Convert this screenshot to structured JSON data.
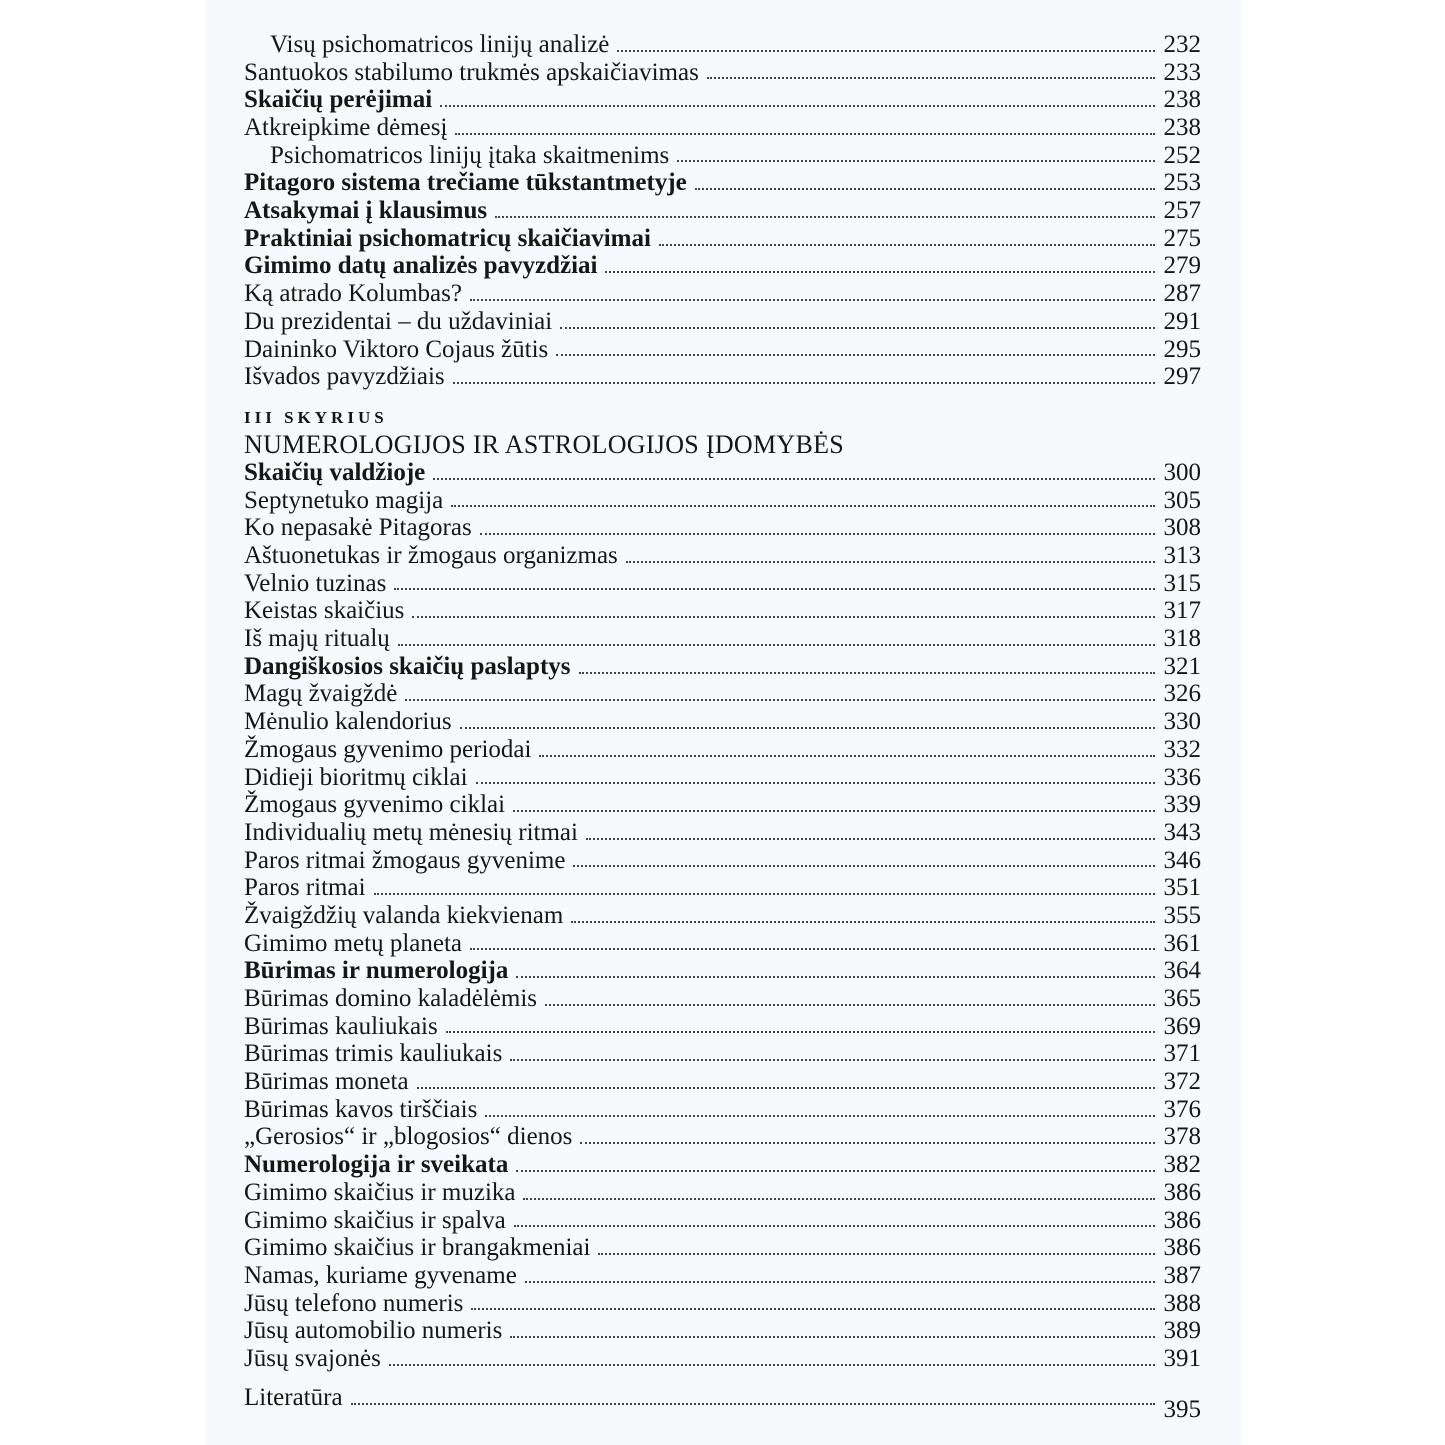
{
  "section1": [
    {
      "title": "Visų psichomatricos linijų analizė",
      "page": "232",
      "bold": false,
      "indent": true
    },
    {
      "title": "Santuokos stabilumo trukmės apskaičiavimas",
      "page": "233",
      "bold": false,
      "indent": false
    },
    {
      "title": "Skaičių perėjimai",
      "page": "238",
      "bold": true,
      "indent": false
    },
    {
      "title": "Atkreipkime dėmesį",
      "page": "238",
      "bold": false,
      "indent": false
    },
    {
      "title": "Psichomatricos linijų įtaka skaitmenims",
      "page": "252",
      "bold": false,
      "indent": true
    },
    {
      "title": "Pitagoro sistema trečiame tūkstantmetyje",
      "page": "253",
      "bold": true,
      "indent": false
    },
    {
      "title": "Atsakymai į klausimus",
      "page": "257",
      "bold": true,
      "indent": false
    },
    {
      "title": "Praktiniai psichomatricų skaičiavimai",
      "page": "275",
      "bold": true,
      "indent": false
    },
    {
      "title": "Gimimo datų analizės pavyzdžiai",
      "page": "279",
      "bold": true,
      "indent": false
    },
    {
      "title": "Ką atrado Kolumbas?",
      "page": "287",
      "bold": false,
      "indent": false
    },
    {
      "title": "Du prezidentai – du uždaviniai",
      "page": "291",
      "bold": false,
      "indent": false
    },
    {
      "title": "Daininko Viktoro Cojaus žūtis",
      "page": "295",
      "bold": false,
      "indent": false
    },
    {
      "title": "Išvados pavyzdžiais",
      "page": "297",
      "bold": false,
      "indent": false
    }
  ],
  "chapter": {
    "label": "III SKYRIUS",
    "title": "NUMEROLOGIJOS IR ASTROLOGIJOS ĮDOMYBĖS"
  },
  "section2": [
    {
      "title": "Skaičių valdžioje",
      "page": "300",
      "bold": true
    },
    {
      "title": "Septynetuko magija",
      "page": "305",
      "bold": false
    },
    {
      "title": "Ko nepasakė Pitagoras",
      "page": "308",
      "bold": false
    },
    {
      "title": "Aštuonetukas ir žmogaus organizmas",
      "page": "313",
      "bold": false
    },
    {
      "title": "Velnio tuzinas",
      "page": "315",
      "bold": false
    },
    {
      "title": "Keistas skaičius",
      "page": "317",
      "bold": false
    },
    {
      "title": "Iš majų ritualų",
      "page": "318",
      "bold": false
    },
    {
      "title": "Dangiškosios skaičių paslaptys",
      "page": "321",
      "bold": true
    },
    {
      "title": "Magų žvaigždė",
      "page": "326",
      "bold": false
    },
    {
      "title": "Mėnulio kalendorius",
      "page": "330",
      "bold": false
    },
    {
      "title": "Žmogaus gyvenimo periodai",
      "page": "332",
      "bold": false
    },
    {
      "title": "Didieji bioritmų ciklai",
      "page": "336",
      "bold": false
    },
    {
      "title": "Žmogaus gyvenimo ciklai",
      "page": "339",
      "bold": false
    },
    {
      "title": "Individualių metų mėnesių ritmai",
      "page": "343",
      "bold": false
    },
    {
      "title": "Paros ritmai žmogaus gyvenime",
      "page": "346",
      "bold": false
    },
    {
      "title": "Paros ritmai",
      "page": "351",
      "bold": false
    },
    {
      "title": "Žvaigždžių valanda kiekvienam",
      "page": "355",
      "bold": false
    },
    {
      "title": "Gimimo metų planeta",
      "page": "361",
      "bold": false
    },
    {
      "title": "Būrimas ir numerologija",
      "page": "364",
      "bold": true
    },
    {
      "title": "Būrimas domino kaladėlėmis",
      "page": "365",
      "bold": false
    },
    {
      "title": "Būrimas kauliukais",
      "page": "369",
      "bold": false
    },
    {
      "title": "Būrimas trimis kauliukais",
      "page": "371",
      "bold": false
    },
    {
      "title": "Būrimas moneta",
      "page": "372",
      "bold": false
    },
    {
      "title": "Būrimas kavos tirščiais",
      "page": "376",
      "bold": false
    },
    {
      "title": "„Gerosios“ ir „blogosios“ dienos",
      "page": "378",
      "bold": false
    },
    {
      "title": "Numerologija ir sveikata",
      "page": "382",
      "bold": true
    },
    {
      "title": "Gimimo skaičius ir muzika",
      "page": "386",
      "bold": false
    },
    {
      "title": "Gimimo skaičius ir spalva",
      "page": "386",
      "bold": false
    },
    {
      "title": "Gimimo skaičius ir brangakmeniai",
      "page": "386",
      "bold": false
    },
    {
      "title": "Namas, kuriame gyvename",
      "page": "387",
      "bold": false
    },
    {
      "title": "Jūsų telefono numeris",
      "page": "388",
      "bold": false
    },
    {
      "title": "Jūsų automobilio numeris",
      "page": "389",
      "bold": false
    },
    {
      "title": "Jūsų svajonės",
      "page": "391",
      "bold": false
    }
  ],
  "literature": {
    "title": "Literatūra",
    "page": "395"
  }
}
